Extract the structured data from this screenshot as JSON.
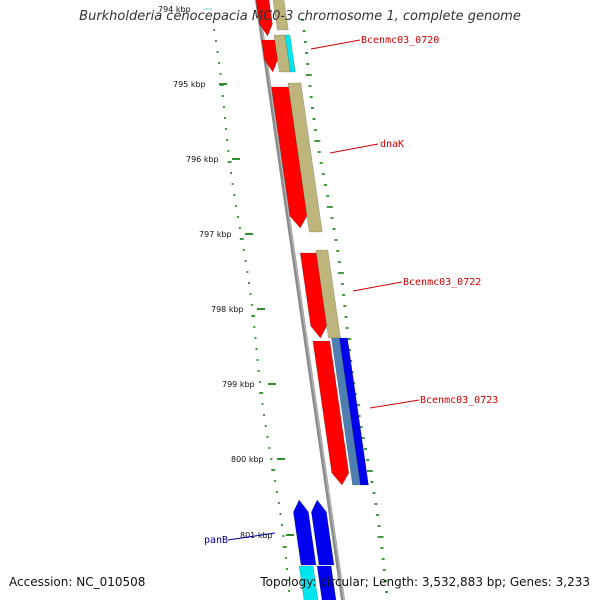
{
  "title": "Burkholderia cenocepacia MC0-3 chromosome 1, complete genome",
  "footer": {
    "accession": "Accession: NC_010508",
    "summary": "Topology: circular; Length: 3,532,883 bp; Genes: 3,233"
  },
  "scale_labels": [
    "794 kbp",
    "795 kbp",
    "796 kbp",
    "797 kbp",
    "798 kbp",
    "799 kbp",
    "800 kbp",
    "801 kbp"
  ],
  "gene_labels": [
    "Bcenmc03_0720",
    "dnaK",
    "Bcenmc03_0722",
    "Bcenmc03_0723",
    "panB"
  ],
  "colors": {
    "cds": "#ff0000",
    "gene": "#bdb57c",
    "blue": "#0000ee",
    "cyan": "#00e5ee",
    "steel": "#4f7fb2",
    "backbone": "#8c8c8c",
    "gc_ticks": "#2f8f2f",
    "label_red": "#cc0000",
    "label_blue": "#000099"
  }
}
